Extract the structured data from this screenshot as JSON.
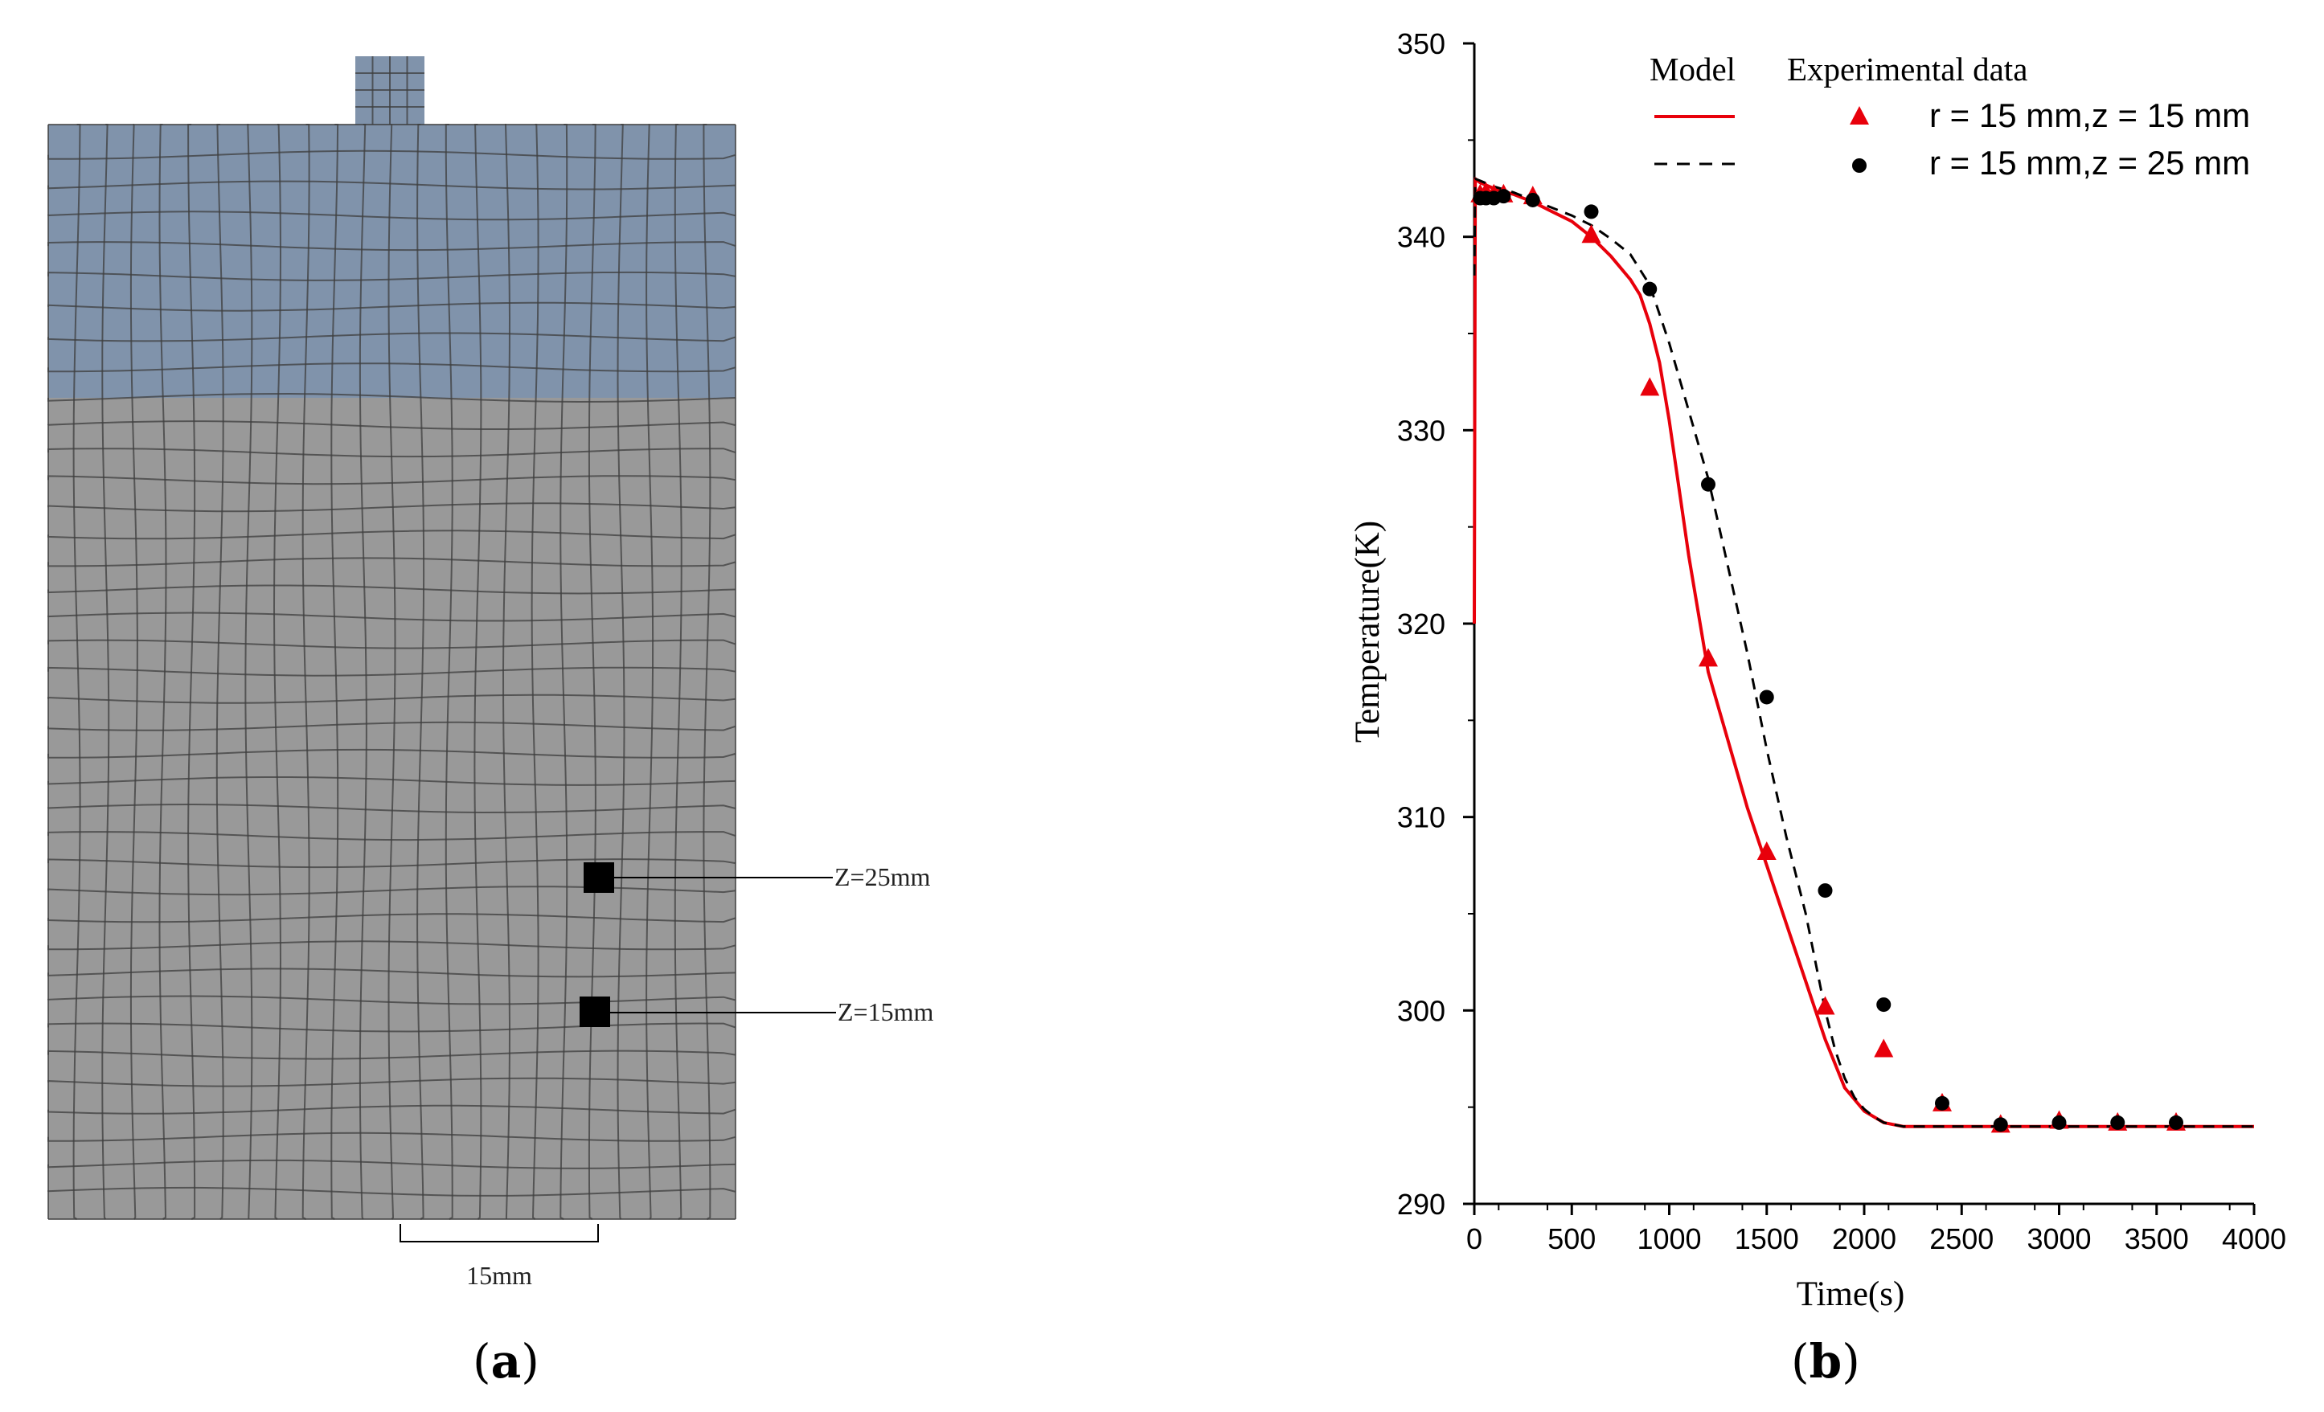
{
  "panel_a": {
    "caption_open": "(",
    "caption_letter": "a",
    "caption_close": ")",
    "sensor_labels": [
      "Z=25mm",
      "Z=15mm"
    ],
    "scale_label": "15mm",
    "colors": {
      "fluid": "#8093ab",
      "solid": "#999999",
      "grid": "#3d3d3d"
    }
  },
  "panel_b": {
    "caption_open": "(",
    "caption_letter": "b",
    "caption_close": ")"
  },
  "chart_data": {
    "type": "line",
    "xlabel": "Time(s)",
    "ylabel": "Temperature(K)",
    "xlim": [
      0,
      4000
    ],
    "ylim": [
      290,
      350
    ],
    "x_ticks": [
      0,
      500,
      1000,
      1500,
      2000,
      2500,
      3000,
      3500,
      4000
    ],
    "y_ticks": [
      290,
      300,
      310,
      320,
      330,
      340,
      350
    ],
    "legend": {
      "model_heading": "Model",
      "exp_heading": "Experimental data",
      "entries": [
        "r = 15 mm,z = 15 mm",
        "r = 15 mm,z = 25 mm"
      ]
    },
    "series": [
      {
        "name": "Model r = 15 mm,z = 15 mm",
        "style": "solid",
        "color": "#e8000b",
        "x": [
          0,
          5,
          30,
          100,
          200,
          300,
          400,
          500,
          600,
          700,
          800,
          850,
          900,
          950,
          1000,
          1100,
          1200,
          1300,
          1400,
          1500,
          1600,
          1700,
          1800,
          1900,
          2000,
          2050,
          2100,
          2150,
          2200,
          2300,
          2500,
          3000,
          3500,
          4000
        ],
        "y": [
          320,
          343,
          342.8,
          342.5,
          342.2,
          341.8,
          341.3,
          340.8,
          340,
          339,
          337.8,
          337,
          335.5,
          333.5,
          330.5,
          323.5,
          317.5,
          314,
          310.5,
          307.5,
          304.5,
          301.5,
          298.5,
          296,
          294.8,
          294.5,
          294.2,
          294.1,
          294,
          294,
          294,
          294,
          294,
          294
        ]
      },
      {
        "name": "Model r = 15 mm,z = 25 mm",
        "style": "dashed",
        "color": "#000000",
        "x": [
          0,
          5,
          30,
          100,
          200,
          300,
          400,
          500,
          600,
          700,
          800,
          900,
          1000,
          1100,
          1200,
          1300,
          1400,
          1500,
          1600,
          1700,
          1750,
          1800,
          1850,
          1900,
          1950,
          2000,
          2050,
          2100,
          2200,
          2300,
          2500,
          3000,
          3500,
          4000
        ],
        "y": [
          338,
          343,
          342.9,
          342.6,
          342.3,
          341.9,
          341.5,
          341.1,
          340.6,
          339.9,
          339.1,
          337.5,
          334.5,
          331,
          327.5,
          323,
          318.5,
          313.5,
          309,
          305,
          302.5,
          300,
          298,
          296.5,
          295.5,
          294.9,
          294.5,
          294.2,
          294,
          294,
          294,
          294,
          294,
          294
        ]
      },
      {
        "name": "Experimental r = 15 mm,z = 15 mm",
        "marker": "triangle",
        "color": "#e8000b",
        "x": [
          30,
          60,
          100,
          150,
          300,
          600,
          900,
          1200,
          1500,
          1800,
          2100,
          2400,
          2700,
          3000,
          3300,
          3600
        ],
        "y": [
          342.2,
          342.3,
          342.2,
          342.2,
          342.1,
          340.1,
          332.2,
          318.2,
          308.2,
          300.2,
          298,
          295.2,
          294.1,
          294.3,
          294.2,
          294.2
        ]
      },
      {
        "name": "Experimental r = 15 mm,z = 25 mm",
        "marker": "circle",
        "color": "#000000",
        "x": [
          30,
          60,
          100,
          150,
          300,
          600,
          900,
          1200,
          1500,
          1800,
          2100,
          2400,
          2700,
          3000,
          3300,
          3600
        ],
        "y": [
          342,
          342,
          342,
          342.1,
          341.9,
          341.3,
          337.3,
          327.2,
          316.2,
          306.2,
          300.3,
          295.2,
          294.1,
          294.2,
          294.2,
          294.2
        ]
      }
    ]
  }
}
